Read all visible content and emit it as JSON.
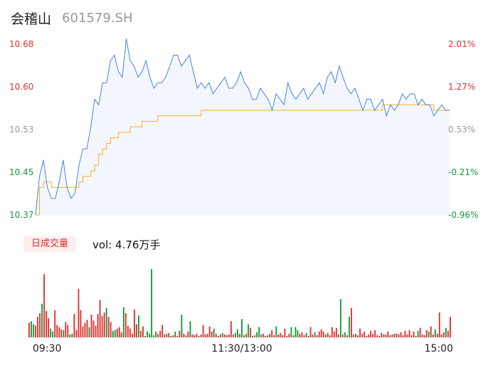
{
  "stock": {
    "name": "会稽山",
    "code": "601579.SH"
  },
  "volume_panel": {
    "label": "日成交量",
    "summary": "vol: 4.76万手"
  },
  "colors": {
    "price_line": "#4a82e0",
    "avg_line": "#f5b02a",
    "up": "#e03030",
    "down": "#139a3a",
    "neutral": "#999999",
    "area_fill": "#f3f6fd"
  },
  "chart_data": [
    {
      "type": "line",
      "ylim": [
        10.37,
        10.68
      ],
      "price_ticks": [
        "10.68",
        "10.60",
        "10.53",
        "10.45",
        "10.37"
      ],
      "pct_ticks": [
        "2.01%",
        "1.27%",
        "0.53%",
        "-0.21%",
        "-0.96%"
      ],
      "tick_colors": [
        "up",
        "up",
        "neutral",
        "down",
        "down"
      ],
      "series": [
        {
          "values": [
            10.37,
            10.44,
            10.47,
            10.42,
            10.4,
            10.4,
            10.43,
            10.47,
            10.42,
            10.4,
            10.41,
            10.46,
            10.49,
            10.49,
            10.53,
            10.58,
            10.57,
            10.61,
            10.61,
            10.65,
            10.66,
            10.63,
            10.62,
            10.69,
            10.65,
            10.64,
            10.62,
            10.63,
            10.65,
            10.62,
            10.6,
            10.61,
            10.61,
            10.62,
            10.64,
            10.66,
            10.66,
            10.64,
            10.65,
            10.66,
            10.63,
            10.6,
            10.61,
            10.6,
            10.61,
            10.59,
            10.6,
            10.61,
            10.62,
            10.6,
            10.6,
            10.61,
            10.63,
            10.61,
            10.6,
            10.58,
            10.58,
            10.6,
            10.59,
            10.58,
            10.56,
            10.59,
            10.58,
            10.57,
            10.61,
            10.59,
            10.58,
            10.59,
            10.6,
            10.58,
            10.59,
            10.6,
            10.61,
            10.59,
            10.62,
            10.63,
            10.61,
            10.64,
            10.62,
            10.6,
            10.59,
            10.6,
            10.58,
            10.56,
            10.58,
            10.58,
            10.56,
            10.57,
            10.58,
            10.55,
            10.57,
            10.56,
            10.57,
            10.59,
            10.58,
            10.59,
            10.59,
            10.57,
            10.58,
            10.57,
            10.57,
            10.55,
            10.56,
            10.57,
            10.56,
            10.56
          ]
        },
        {
          "values": [
            10.37,
            10.42,
            10.43,
            10.43,
            10.42,
            10.42,
            10.42,
            10.42,
            10.42,
            10.42,
            10.42,
            10.43,
            10.44,
            10.44,
            10.45,
            10.46,
            10.48,
            10.49,
            10.5,
            10.51,
            10.51,
            10.52,
            10.52,
            10.52,
            10.53,
            10.53,
            10.53,
            10.54,
            10.54,
            10.54,
            10.54,
            10.55,
            10.55,
            10.55,
            10.55,
            10.55,
            10.55,
            10.55,
            10.55,
            10.55,
            10.55,
            10.55,
            10.56,
            10.56,
            10.56,
            10.56,
            10.56,
            10.56,
            10.56,
            10.56,
            10.56,
            10.56,
            10.56,
            10.56,
            10.56,
            10.56,
            10.56,
            10.56,
            10.56,
            10.56,
            10.56,
            10.56,
            10.56,
            10.56,
            10.56,
            10.56,
            10.56,
            10.56,
            10.56,
            10.56,
            10.56,
            10.56,
            10.56,
            10.56,
            10.56,
            10.56,
            10.56,
            10.56,
            10.56,
            10.56,
            10.56,
            10.56,
            10.56,
            10.56,
            10.56,
            10.56,
            10.56,
            10.56,
            10.57,
            10.57,
            10.57,
            10.57,
            10.57,
            10.57,
            10.57,
            10.57,
            10.57,
            10.57,
            10.57,
            10.57,
            10.57,
            10.56,
            10.56,
            10.56,
            10.56,
            10.56
          ]
        }
      ]
    },
    {
      "type": "bar",
      "x_ticks": [
        "09:30",
        "11:30/13:00",
        "15:00"
      ],
      "values": [
        20,
        22,
        18,
        16,
        28,
        33,
        46,
        86,
        36,
        26,
        12,
        8,
        37,
        17,
        14,
        11,
        10,
        21,
        17,
        4,
        5,
        32,
        10,
        66,
        37,
        15,
        20,
        24,
        14,
        31,
        23,
        16,
        32,
        51,
        29,
        34,
        40,
        28,
        21,
        9,
        10,
        12,
        14,
        7,
        41,
        33,
        16,
        12,
        5,
        38,
        18,
        30,
        9,
        15,
        2,
        8,
        5,
        93,
        3,
        8,
        5,
        9,
        17,
        4,
        5,
        6,
        2,
        3,
        8,
        2,
        9,
        31,
        5,
        3,
        8,
        22,
        4,
        3,
        5,
        2,
        4,
        17,
        4,
        5,
        15,
        8,
        12,
        5,
        2,
        4,
        6,
        4,
        3,
        4,
        22,
        4,
        6,
        11,
        5,
        25,
        3,
        5,
        18,
        13,
        2,
        3,
        7,
        14,
        4,
        5,
        2,
        3,
        5,
        10,
        3,
        15,
        4,
        6,
        3,
        12,
        2,
        5,
        14,
        3,
        14,
        10,
        5,
        7,
        3,
        6,
        2,
        14,
        4,
        7,
        3,
        8,
        11,
        8,
        4,
        6,
        3,
        14,
        8,
        13,
        4,
        52,
        4,
        7,
        3,
        28,
        40,
        4,
        5,
        3,
        12,
        5,
        8,
        2,
        4,
        9,
        5,
        10,
        3,
        2,
        6,
        4,
        4,
        8,
        3,
        4,
        5,
        5,
        4,
        7,
        3,
        9,
        4,
        10,
        3,
        8,
        2,
        9,
        13,
        4,
        3,
        10,
        8,
        15,
        4,
        11,
        5,
        34,
        4,
        7,
        13,
        9,
        28
      ],
      "colors": [
        "up",
        "down",
        "down",
        "up",
        "up",
        "up",
        "down",
        "up",
        "up",
        "up",
        "down",
        "down",
        "up",
        "up",
        "up",
        "up",
        "down",
        "up",
        "up",
        "down",
        "down",
        "up",
        "up",
        "up",
        "up",
        "up",
        "up",
        "up",
        "down",
        "up",
        "up",
        "up",
        "up",
        "up",
        "up",
        "up",
        "down",
        "up",
        "up",
        "down",
        "down",
        "up",
        "up",
        "up",
        "down",
        "up",
        "up",
        "up",
        "up",
        "up",
        "up",
        "down",
        "up",
        "up",
        "up",
        "down",
        "down",
        "down",
        "down",
        "up",
        "down",
        "up",
        "up",
        "up",
        "down",
        "up",
        "up",
        "up",
        "down",
        "up",
        "up",
        "down",
        "up",
        "up",
        "up",
        "down",
        "up",
        "up",
        "up",
        "down",
        "up",
        "up",
        "up",
        "up",
        "up",
        "up",
        "down",
        "up",
        "up",
        "up",
        "down",
        "up",
        "up",
        "up",
        "up",
        "up",
        "down",
        "down",
        "up",
        "down",
        "down",
        "up",
        "down",
        "up",
        "up",
        "down",
        "down",
        "down",
        "up",
        "up",
        "up",
        "down",
        "up",
        "up",
        "up",
        "down",
        "up",
        "up",
        "up",
        "up",
        "up",
        "up",
        "down",
        "up",
        "down",
        "down",
        "up",
        "up",
        "up",
        "down",
        "up",
        "up",
        "up",
        "down",
        "up",
        "up",
        "up",
        "up",
        "down",
        "up",
        "up",
        "up",
        "up",
        "up",
        "up",
        "down",
        "up",
        "down",
        "up",
        "down",
        "up",
        "up",
        "down",
        "up",
        "up",
        "up",
        "up",
        "up",
        "up",
        "up",
        "up",
        "up",
        "up",
        "up",
        "up",
        "down",
        "up",
        "up",
        "up",
        "down",
        "up",
        "up",
        "up",
        "up",
        "up",
        "up",
        "up",
        "up",
        "down",
        "up",
        "up",
        "down",
        "up",
        "up",
        "up",
        "up",
        "down",
        "up",
        "up",
        "down",
        "up",
        "up",
        "up",
        "up",
        "down",
        "up",
        "up"
      ]
    }
  ]
}
